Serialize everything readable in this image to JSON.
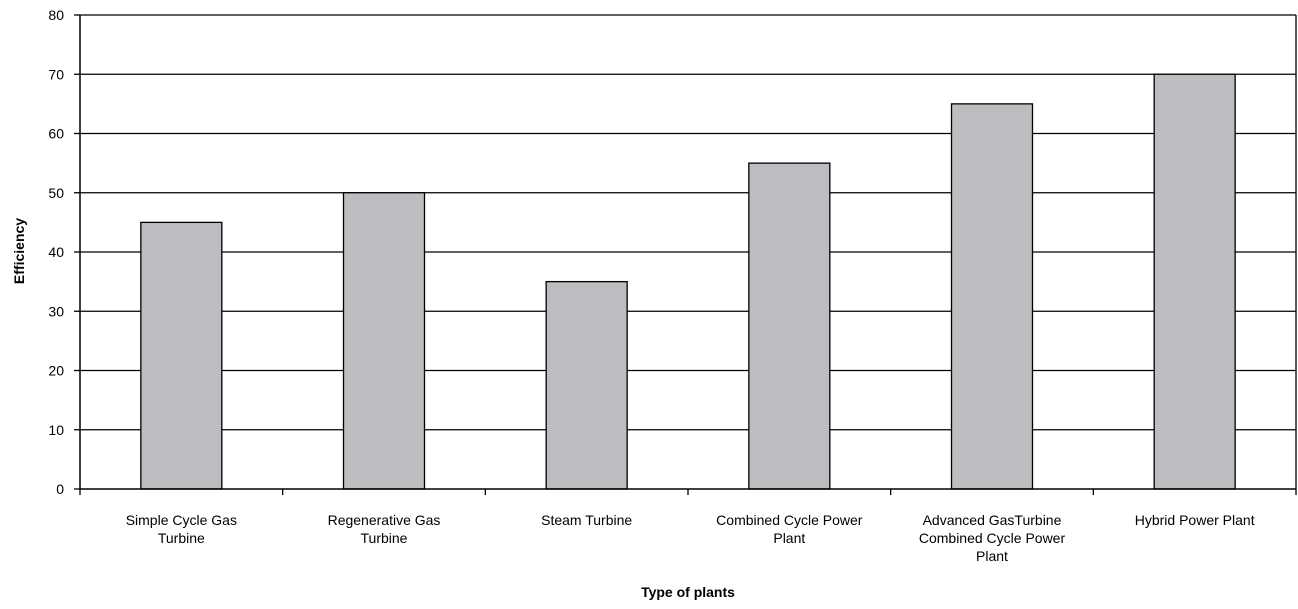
{
  "chart_data": {
    "type": "bar",
    "title": "",
    "xlabel": "Type of plants",
    "ylabel": "Efficiency",
    "ylim": [
      0,
      80
    ],
    "yticks": [
      0,
      10,
      20,
      30,
      40,
      50,
      60,
      70,
      80
    ],
    "grid": true,
    "categories": [
      [
        "Simple Cycle Gas",
        "Turbine"
      ],
      [
        "Regenerative Gas",
        "Turbine"
      ],
      [
        "Steam Turbine"
      ],
      [
        "Combined Cycle Power",
        "Plant"
      ],
      [
        "Advanced GasTurbine",
        "Combined Cycle Power",
        "Plant"
      ],
      [
        "Hybrid Power Plant"
      ]
    ],
    "values": [
      45,
      50,
      35,
      55,
      65,
      70
    ],
    "colors": {
      "bar_fill": "#bcbdc1",
      "bar_stroke": "#000000",
      "grid": "#000000",
      "background": "#ffffff"
    }
  }
}
